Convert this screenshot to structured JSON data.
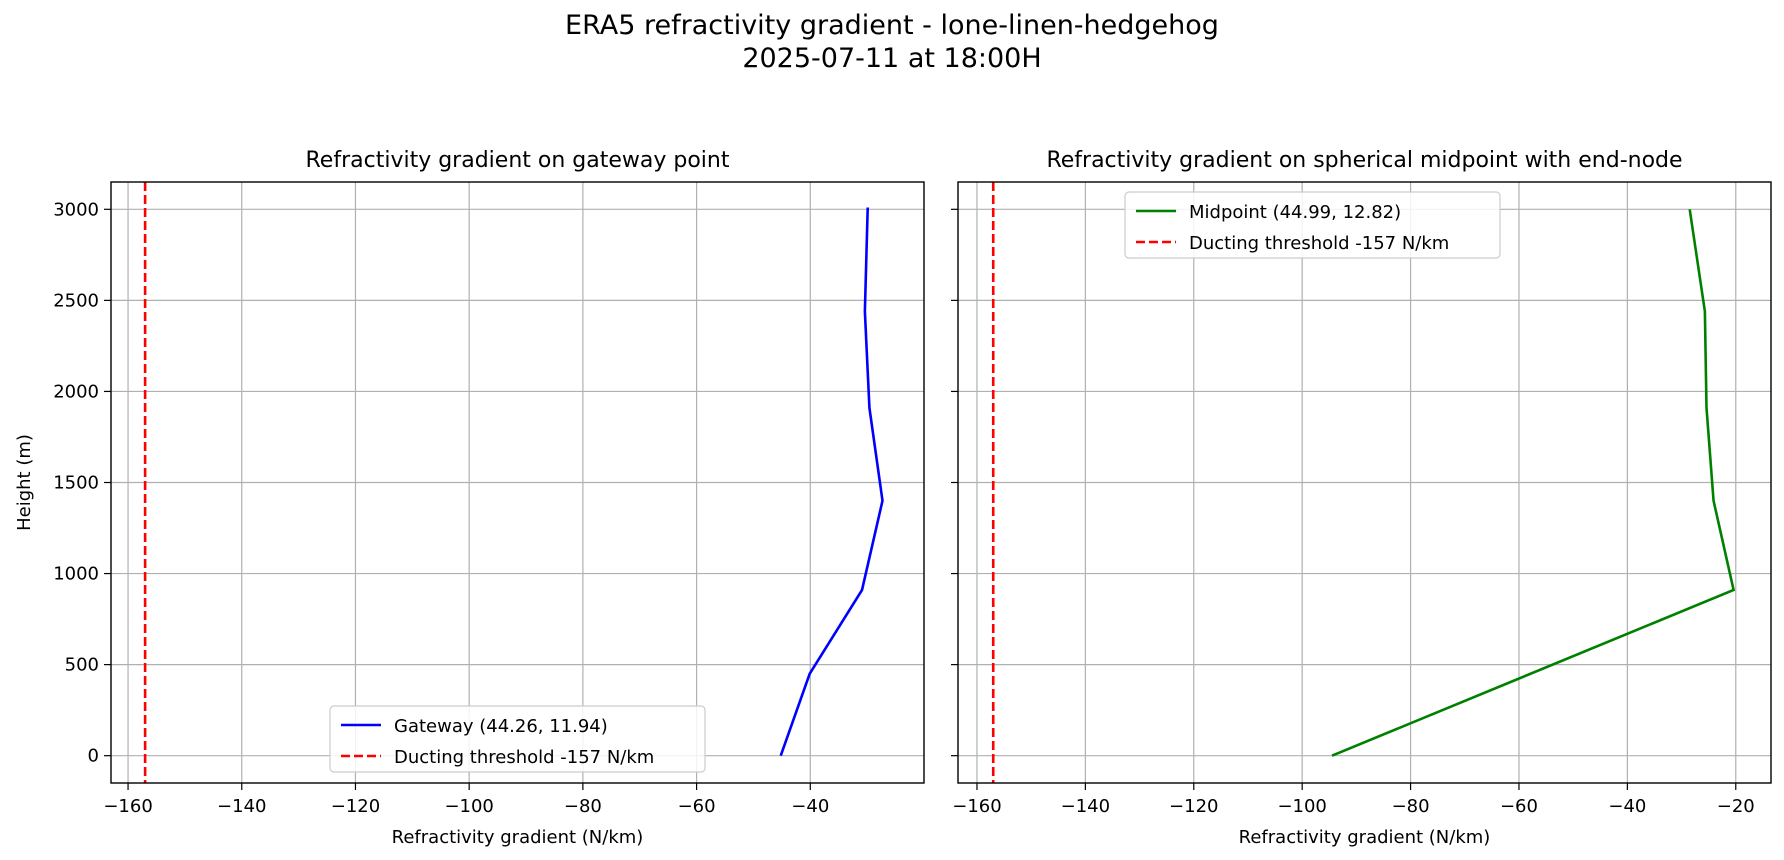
{
  "figure": {
    "title_line1": "ERA5 refractivity gradient - lone-linen-hedgehog",
    "title_line2": "2025-07-11 at 18:00H"
  },
  "chart_data": [
    {
      "type": "line",
      "title": "Refractivity gradient on gateway point",
      "xlabel": "Refractivity gradient (N/km)",
      "ylabel": "Height (m)",
      "xlim": [
        -163,
        -20
      ],
      "ylim": [
        -150,
        3150
      ],
      "xticks": [
        -160,
        -140,
        -120,
        -100,
        -80,
        -60,
        -40
      ],
      "xtick_labels": [
        "−160",
        "−140",
        "−120",
        "−100",
        "−80",
        "−60",
        "−40"
      ],
      "yticks": [
        0,
        500,
        1000,
        1500,
        2000,
        2500,
        3000
      ],
      "ytick_labels": [
        "0",
        "500",
        "1000",
        "1500",
        "2000",
        "2500",
        "3000"
      ],
      "show_ytick_labels": true,
      "grid": true,
      "legend_loc": "lower-center",
      "series": [
        {
          "name": "Gateway (44.26, 11.94)",
          "color": "#0000ff",
          "style": "solid",
          "x": [
            -45.2,
            -40.1,
            -30.9,
            -27.3,
            -29.6,
            -30.4,
            -29.9
          ],
          "y": [
            0,
            450,
            910,
            1400,
            1910,
            2440,
            3010
          ]
        },
        {
          "name": "Ducting threshold -157 N/km",
          "color": "#ff0000",
          "style": "dashed",
          "vline": -157
        }
      ]
    },
    {
      "type": "line",
      "title": "Refractivity gradient on spherical midpoint with end-node",
      "xlabel": "Refractivity gradient (N/km)",
      "ylabel": "",
      "xlim": [
        -163.5,
        -13.5
      ],
      "ylim": [
        -150,
        3150
      ],
      "xticks": [
        -160,
        -140,
        -120,
        -100,
        -80,
        -60,
        -40,
        -20
      ],
      "xtick_labels": [
        "−160",
        "−140",
        "−120",
        "−100",
        "−80",
        "−60",
        "−40",
        "−20"
      ],
      "yticks": [
        0,
        500,
        1000,
        1500,
        2000,
        2500,
        3000
      ],
      "ytick_labels": [
        "",
        "",
        "",
        "",
        "",
        "",
        ""
      ],
      "show_ytick_labels": false,
      "grid": true,
      "legend_loc": "upper-center",
      "series": [
        {
          "name": "Midpoint (44.99, 12.82)",
          "color": "#008000",
          "style": "solid",
          "x": [
            -94.5,
            -20.4,
            -24.1,
            -25.4,
            -25.7,
            -28.5
          ],
          "y": [
            0,
            910,
            1400,
            1910,
            2440,
            3000
          ]
        },
        {
          "name": "Ducting threshold -157 N/km",
          "color": "#ff0000",
          "style": "dashed",
          "vline": -157
        }
      ]
    }
  ]
}
